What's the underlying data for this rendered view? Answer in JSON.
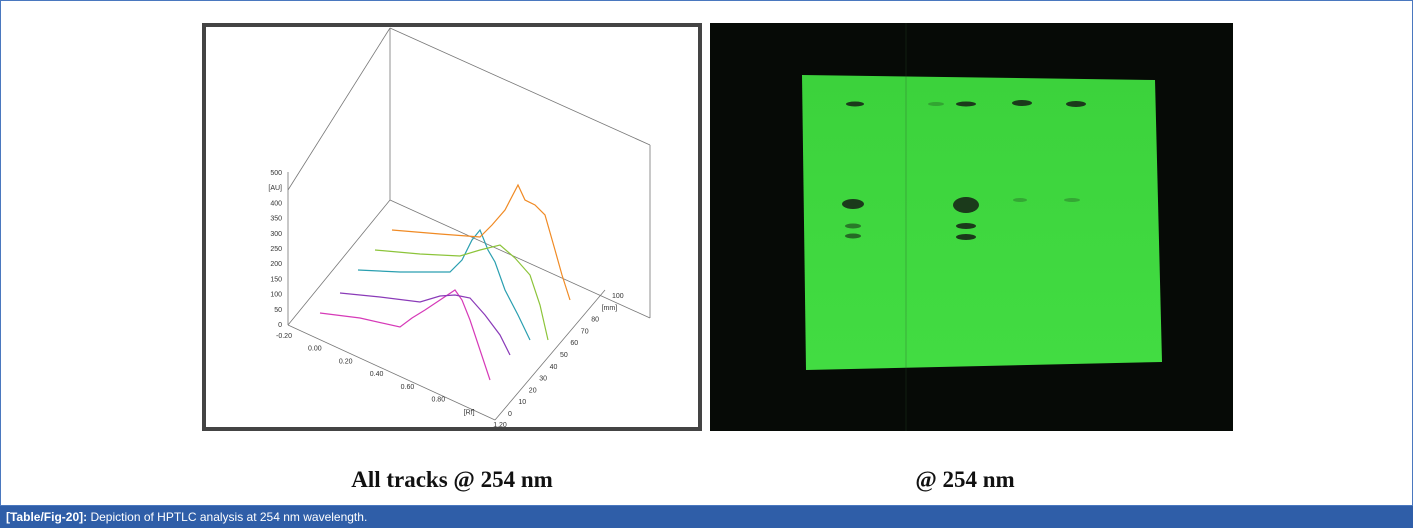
{
  "panels": [
    {
      "y_axis_labels": [
        "500",
        "[AU]",
        "400",
        "350",
        "300",
        "250",
        "200",
        "150",
        "100",
        "50",
        "0"
      ],
      "x_axis_labels": [
        "-0.20",
        "0.00",
        "0.20",
        "0.40",
        "0.60",
        "0.80",
        "[Rf]",
        "1.20"
      ],
      "depth_axis_labels": [
        "100",
        "[mm]",
        "80",
        "70",
        "60",
        "50",
        "40",
        "30",
        "20",
        "10",
        "0"
      ],
      "caption": "All tracks @ 254 nm"
    },
    {
      "caption": "@ 254 nm"
    }
  ],
  "figure_caption": {
    "label": "[Table/Fig-20]:",
    "text": "Depiction of HPTLC analysis at 254 nm wavelength."
  }
}
